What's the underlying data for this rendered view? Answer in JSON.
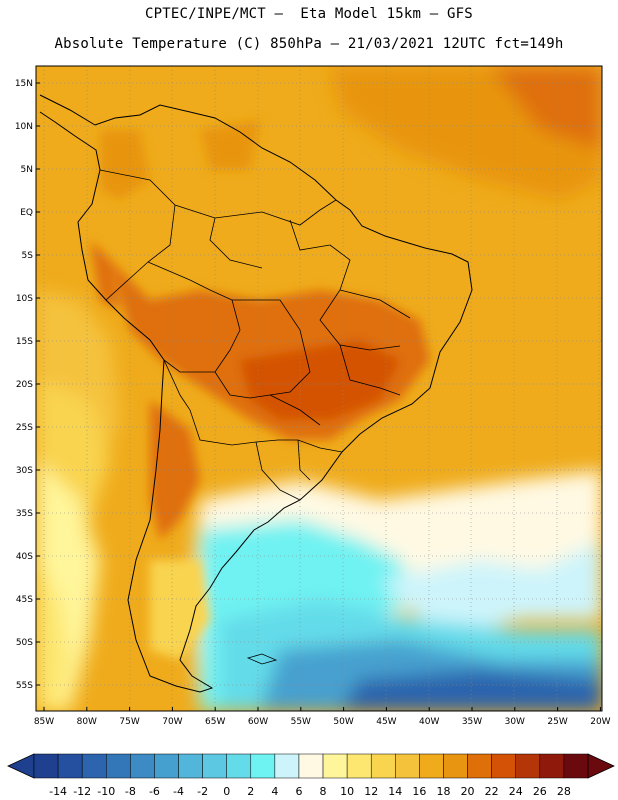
{
  "header": {
    "line1": "CPTEC/INPE/MCT –  Eta Model 15km – GFS",
    "line2": "Absolute Temperature (C) 850hPa – 21/03/2021 12UTC fct=149h"
  },
  "axes": {
    "lat_labels": [
      "15N",
      "10N",
      "5N",
      "EQ",
      "5S",
      "10S",
      "15S",
      "20S",
      "25S",
      "30S",
      "35S",
      "40S",
      "45S",
      "50S",
      "55S"
    ],
    "lon_labels": [
      "85W",
      "80W",
      "75W",
      "70W",
      "65W",
      "60W",
      "55W",
      "50W",
      "45W",
      "40W",
      "35W",
      "30W",
      "25W",
      "20W"
    ]
  },
  "colorbar": {
    "labels": [
      "-14",
      "-12",
      "-10",
      "-8",
      "-6",
      "-4",
      "-2",
      "0",
      "2",
      "4",
      "6",
      "8",
      "10",
      "12",
      "14",
      "16",
      "18",
      "20",
      "22",
      "24",
      "26",
      "28"
    ],
    "colors": [
      "#1f3f8f",
      "#24509f",
      "#2c64ad",
      "#3477b8",
      "#3c8bc4",
      "#46a0cf",
      "#52b5da",
      "#5cc8e2",
      "#64dbe9",
      "#6ff2f2",
      "#cdf4fb",
      "#fff9e3",
      "#fff59a",
      "#fde771",
      "#f9d44f",
      "#f5c23c",
      "#efab1b",
      "#e89511",
      "#df6f08",
      "#d45205",
      "#b43508",
      "#8f1a0b",
      "#6b0a0e"
    ]
  }
}
